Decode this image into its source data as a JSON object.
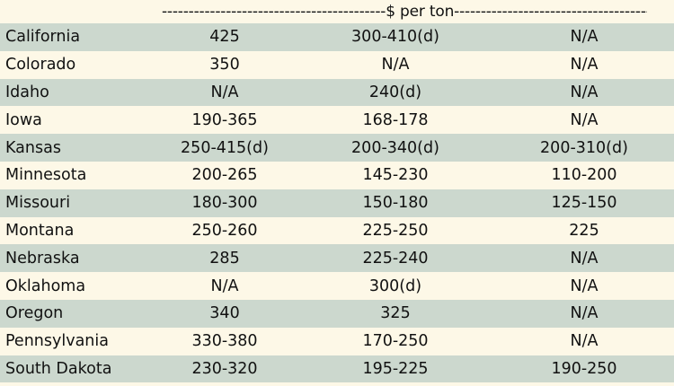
{
  "header": {
    "unit_label": "------------------------------------------$ per ton-----------------------------------------"
  },
  "colors": {
    "background": "#fdf8e7",
    "shaded_row": "#ccd8ce"
  },
  "table": {
    "rows": [
      {
        "state": "California",
        "col1": "425",
        "col2": "300-410(d)",
        "col3": "N/A"
      },
      {
        "state": "Colorado",
        "col1": "350",
        "col2": "N/A",
        "col3": "N/A"
      },
      {
        "state": "Idaho",
        "col1": "N/A",
        "col2": "240(d)",
        "col3": "N/A"
      },
      {
        "state": "Iowa",
        "col1": "190-365",
        "col2": "168-178",
        "col3": "N/A"
      },
      {
        "state": "Kansas",
        "col1": "250-415(d)",
        "col2": "200-340(d)",
        "col3": "200-310(d)"
      },
      {
        "state": "Minnesota",
        "col1": "200-265",
        "col2": "145-230",
        "col3": "110-200"
      },
      {
        "state": "Missouri",
        "col1": "180-300",
        "col2": "150-180",
        "col3": "125-150"
      },
      {
        "state": "Montana",
        "col1": "250-260",
        "col2": "225-250",
        "col3": "225"
      },
      {
        "state": "Nebraska",
        "col1": "285",
        "col2": "225-240",
        "col3": "N/A"
      },
      {
        "state": "Oklahoma",
        "col1": "N/A",
        "col2": "300(d)",
        "col3": "N/A"
      },
      {
        "state": "Oregon",
        "col1": "340",
        "col2": "325",
        "col3": "N/A"
      },
      {
        "state": "Pennsylvania",
        "col1": "330-380",
        "col2": "170-250",
        "col3": "N/A"
      },
      {
        "state": "South Dakota",
        "col1": "230-320",
        "col2": "195-225",
        "col3": "190-250"
      }
    ]
  }
}
